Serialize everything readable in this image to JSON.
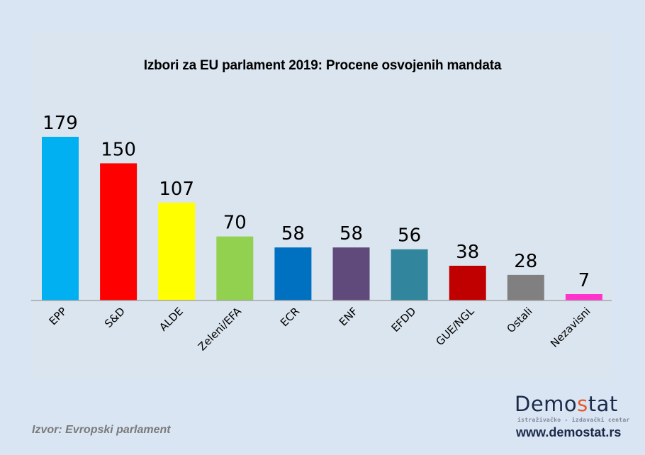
{
  "chart_data": {
    "type": "bar",
    "title": "Izbori za EU parlament 2019: Procene osvojenih mandata",
    "xlabel": "",
    "ylabel": "",
    "ylim": [
      0,
      190
    ],
    "grid": false,
    "legend": "none",
    "categories": [
      "EPP",
      "S&D",
      "ALDE",
      "Zeleni/EFA",
      "ECR",
      "ENF",
      "EFDD",
      "GUE/NGL",
      "Ostali",
      "Nezavisni"
    ],
    "values": [
      179,
      150,
      107,
      70,
      58,
      58,
      56,
      38,
      28,
      7
    ],
    "colors": [
      "#00b0f0",
      "#ff0000",
      "#ffff00",
      "#92d050",
      "#0070c0",
      "#604a7b",
      "#31859c",
      "#c00000",
      "#808080",
      "#ff33cc"
    ],
    "data_labels": [
      "179",
      "150",
      "107",
      "70",
      "58",
      "58",
      "56",
      "38",
      "28",
      "7"
    ]
  },
  "footer": {
    "source": "Izvor: Evropski parlament",
    "logo_prefix": "Demo",
    "logo_accent": "s",
    "logo_suffix": "tat",
    "logo_tagline": "istraživačko - izdavački  centar",
    "website": "www.demostat.rs"
  }
}
